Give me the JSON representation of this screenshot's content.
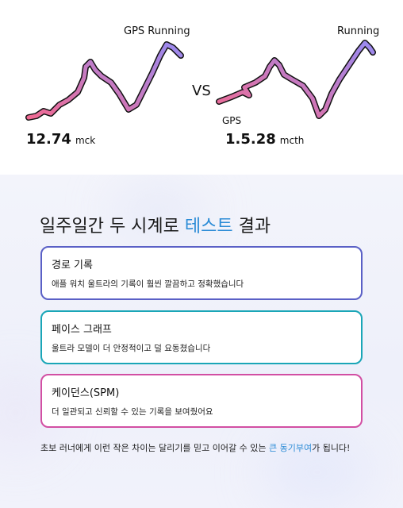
{
  "top": {
    "label_gps_running": "GPS Running",
    "label_running": "Running",
    "label_vs": "VS",
    "label_gps": "GPS",
    "left_value": "12.74",
    "left_unit": "mck",
    "right_value": "1.5.28",
    "right_unit": "mcth"
  },
  "colors": {
    "line_start": "#f06a93",
    "line_end": "#9a8af0",
    "accent": "#2a8bd6",
    "card1_border": "#5a60c6",
    "card2_border": "#1aa6b7",
    "card3_border": "#d24fa3"
  },
  "heading": {
    "prefix": "일주일간 두 시계로 ",
    "accent": "테스트",
    "suffix": " 결과"
  },
  "cards": [
    {
      "title": "경로 기록",
      "desc": "애플 워치 울트라의 기록이 훨씬 깔끔하고 정확했습니다"
    },
    {
      "title": "페이스 그래프",
      "desc": "울트라 모델이 더 안정적이고 덜 요동쳤습니다"
    },
    {
      "title": "케이던스(SPM)",
      "desc": "더 일관되고 신뢰할 수 있는 기록을 보여줬어요"
    }
  ],
  "footer": {
    "prefix": "초보 러너에게 이런 작은 차이는 달리기를 믿고 이어갈 수 있는 ",
    "accent": "큰 동기부여",
    "suffix": "가 됩니다!"
  }
}
